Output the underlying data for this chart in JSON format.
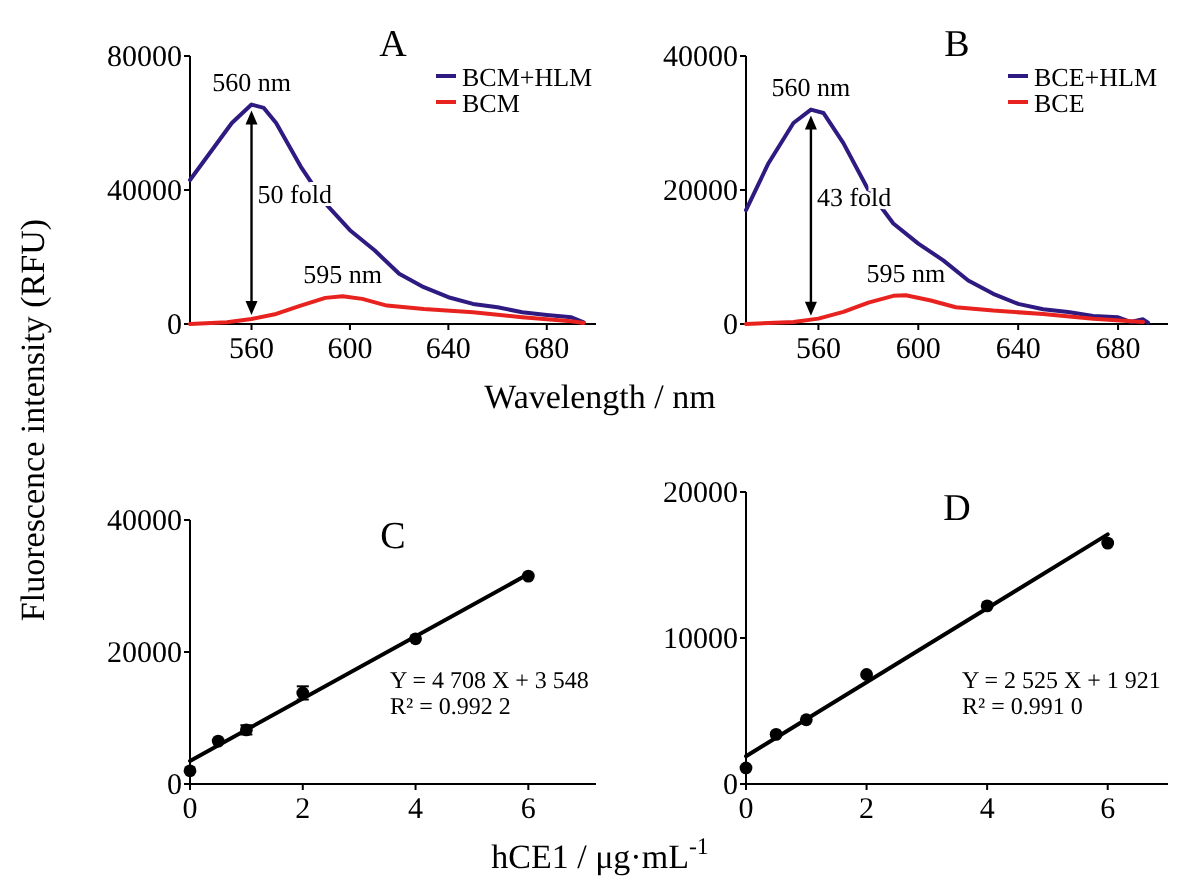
{
  "chart_data": [
    {
      "type": "line",
      "title": "A",
      "xlabel": "Wavelength / nm",
      "ylabel": "Fluorescence intensity (RFU)",
      "xlim": [
        535,
        700
      ],
      "xticks": [
        560,
        600,
        640,
        680
      ],
      "ylim": [
        0,
        80000
      ],
      "yticks": [
        0,
        40000,
        80000
      ],
      "legend": "top right",
      "grid": false,
      "marker": "none",
      "line_style": "solid",
      "series": [
        {
          "name": "BCM+HLM",
          "color": "#2e1a80",
          "x": [
            535,
            545,
            552,
            560,
            565,
            570,
            580,
            590,
            600,
            610,
            620,
            630,
            640,
            650,
            660,
            670,
            680,
            690,
            695
          ],
          "values": [
            43000,
            53000,
            60000,
            65500,
            64500,
            60000,
            47000,
            36000,
            28000,
            22000,
            15000,
            11000,
            8000,
            6000,
            5000,
            3500,
            2700,
            2000,
            500
          ]
        },
        {
          "name": "BCM",
          "color": "#e8231f",
          "x": [
            535,
            550,
            560,
            570,
            580,
            590,
            597,
            605,
            615,
            630,
            650,
            670,
            690,
            695
          ],
          "values": [
            0,
            500,
            1500,
            3000,
            5500,
            7800,
            8300,
            7500,
            5500,
            4500,
            3500,
            2000,
            800,
            300
          ]
        }
      ],
      "annotations": [
        "560 nm",
        "50 fold",
        "595 nm"
      ]
    },
    {
      "type": "line",
      "title": "B",
      "xlim": [
        531,
        700
      ],
      "xticks": [
        560,
        600,
        640,
        680
      ],
      "ylim": [
        0,
        40000
      ],
      "yticks": [
        0,
        20000,
        40000
      ],
      "legend": "top right",
      "grid": false,
      "marker": "none",
      "line_style": "solid",
      "series": [
        {
          "name": "BCE+HLM",
          "color": "#2e1a80",
          "x": [
            531,
            540,
            550,
            557,
            562,
            570,
            580,
            590,
            600,
            610,
            620,
            630,
            640,
            650,
            660,
            670,
            680,
            685,
            690,
            692
          ],
          "values": [
            17000,
            24000,
            30000,
            32000,
            31500,
            27000,
            20000,
            15000,
            12000,
            9500,
            6500,
            4500,
            3000,
            2200,
            1800,
            1200,
            1000,
            300,
            700,
            200
          ]
        },
        {
          "name": "BCE",
          "color": "#e8231f",
          "x": [
            531,
            550,
            560,
            570,
            580,
            590,
            595,
            605,
            615,
            630,
            650,
            670,
            690
          ],
          "values": [
            0,
            300,
            800,
            1800,
            3200,
            4200,
            4300,
            3500,
            2500,
            2000,
            1500,
            800,
            300
          ]
        }
      ],
      "annotations": [
        "560 nm",
        "43 fold",
        "595 nm"
      ]
    },
    {
      "type": "scatter",
      "title": "C",
      "xlabel": "hCE1 / μg·mL$^{-1}$",
      "xlim": [
        0,
        7.2
      ],
      "xticks": [
        0,
        2,
        4,
        6
      ],
      "ylim": [
        0,
        40000
      ],
      "yticks": [
        0,
        20000,
        40000
      ],
      "grid": false,
      "legend": false,
      "marker": "circle",
      "series": [
        {
          "color": "#000000",
          "x": [
            0,
            0.5,
            1,
            2,
            4,
            6
          ],
          "values": [
            2000,
            6500,
            8200,
            13800,
            22000,
            31500
          ],
          "errors": [
            null,
            null,
            700,
            1000,
            null,
            null
          ]
        },
        {
          "type": "line",
          "marker": "none",
          "color": "#000000",
          "x": [
            0,
            6
          ],
          "values": [
            3500,
            31800
          ]
        }
      ],
      "annotations": [
        "Y = 4 708 X + 3 548",
        "R² = 0.992 2"
      ]
    },
    {
      "type": "scatter",
      "title": "D",
      "xlim": [
        0,
        7
      ],
      "xticks": [
        0,
        2,
        4,
        6
      ],
      "ylim": [
        0,
        20000
      ],
      "yticks": [
        0,
        10000,
        20000
      ],
      "grid": false,
      "legend": false,
      "marker": "circle",
      "series": [
        {
          "color": "#000000",
          "x": [
            0,
            0.5,
            1,
            2,
            4,
            6
          ],
          "values": [
            1100,
            3400,
            4400,
            7500,
            12200,
            16500
          ]
        },
        {
          "type": "line",
          "marker": "none",
          "color": "#000000",
          "x": [
            0,
            6
          ],
          "values": [
            1900,
            17100
          ]
        }
      ],
      "annotations": [
        "Y = 2 525 X + 1 921",
        "R² = 0.991 0"
      ]
    }
  ]
}
